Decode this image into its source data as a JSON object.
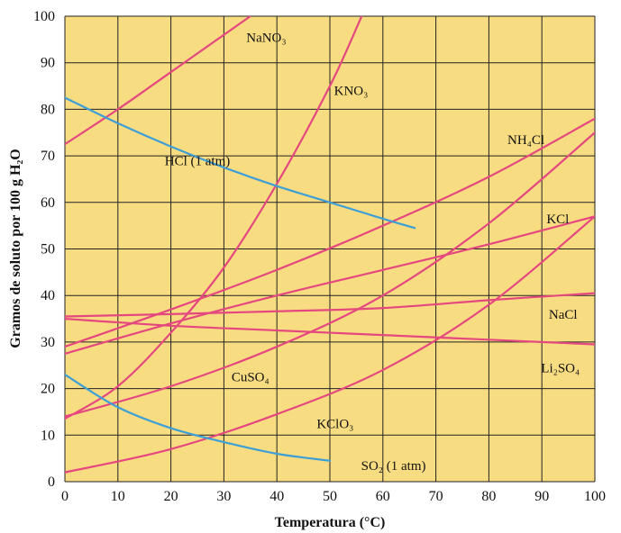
{
  "chart_data": {
    "type": "line",
    "title": "",
    "xlabel": "Temperatura (°C)",
    "ylabel": "Gramos de soluto por 100 g H₂O",
    "xlim": [
      0,
      100
    ],
    "ylim": [
      0,
      100
    ],
    "x_ticks": [
      "0",
      "10",
      "20",
      "30",
      "40",
      "50",
      "60",
      "70",
      "80",
      "90",
      "100"
    ],
    "y_ticks": [
      "0",
      "10",
      "20",
      "30",
      "40",
      "50",
      "60",
      "70",
      "80",
      "90",
      "100"
    ],
    "grid": true,
    "legend": "none",
    "colors": {
      "background": "#f7dc82",
      "grid": "#222222",
      "salts": "#e5487f",
      "gases": "#3e9fd6"
    },
    "series": [
      {
        "name": "NaNO₃",
        "color": "#e5487f",
        "label_position": [
          38,
          95.5
        ],
        "x": [
          0,
          10,
          20,
          30,
          35
        ],
        "y": [
          72.5,
          80,
          88,
          96,
          100
        ]
      },
      {
        "name": "KNO₃",
        "color": "#e5487f",
        "label_position": [
          54,
          84
        ],
        "x": [
          0,
          10,
          20,
          30,
          40,
          50,
          56
        ],
        "y": [
          13.5,
          20.5,
          32,
          46,
          64,
          85,
          100
        ]
      },
      {
        "name": "NH₄Cl",
        "color": "#e5487f",
        "label_position": [
          87,
          73.5
        ],
        "x": [
          0,
          20,
          40,
          60,
          80,
          100
        ],
        "y": [
          29,
          37,
          45.5,
          55,
          65.5,
          78
        ]
      },
      {
        "name": "KCl",
        "color": "#e5487f",
        "label_position": [
          93,
          56.5
        ],
        "x": [
          0,
          20,
          40,
          60,
          80,
          100
        ],
        "y": [
          27.5,
          34,
          40,
          45.5,
          51,
          57
        ]
      },
      {
        "name": "NaCl",
        "color": "#e5487f",
        "label_position": [
          94,
          36
        ],
        "x": [
          0,
          20,
          40,
          60,
          80,
          100
        ],
        "y": [
          35.5,
          36,
          36.6,
          37.3,
          39,
          40.5
        ]
      },
      {
        "name": "Li₂SO₄",
        "color": "#e5487f",
        "label_position": [
          93.5,
          24.5
        ],
        "x": [
          0,
          20,
          40,
          60,
          80,
          100
        ],
        "y": [
          35,
          33.5,
          32.5,
          31.5,
          30.5,
          29.5
        ]
      },
      {
        "name": "CuSO₄",
        "color": "#e5487f",
        "label_position": [
          35,
          22.5
        ],
        "x": [
          0,
          20,
          40,
          60,
          80,
          100
        ],
        "y": [
          14,
          20.5,
          29,
          40,
          55.5,
          75
        ]
      },
      {
        "name": "KClO₃",
        "color": "#e5487f",
        "label_position": [
          51,
          12.5
        ],
        "x": [
          0,
          20,
          40,
          60,
          80,
          100
        ],
        "y": [
          2,
          7,
          14.5,
          24,
          38,
          57
        ]
      },
      {
        "name": "HCl (1 atm)",
        "color": "#3e9fd6",
        "label_position": [
          25,
          69
        ],
        "x": [
          0,
          10,
          20,
          30,
          40,
          50,
          60,
          66
        ],
        "y": [
          82.5,
          77,
          72,
          67.5,
          63.5,
          60,
          56.5,
          54.5
        ]
      },
      {
        "name": "SO₂ (1 atm)",
        "color": "#3e9fd6",
        "label_position": [
          62,
          3.5
        ],
        "x": [
          0,
          10,
          20,
          30,
          40,
          50
        ],
        "y": [
          23,
          16,
          11.5,
          8.5,
          6,
          4.5
        ]
      }
    ]
  }
}
